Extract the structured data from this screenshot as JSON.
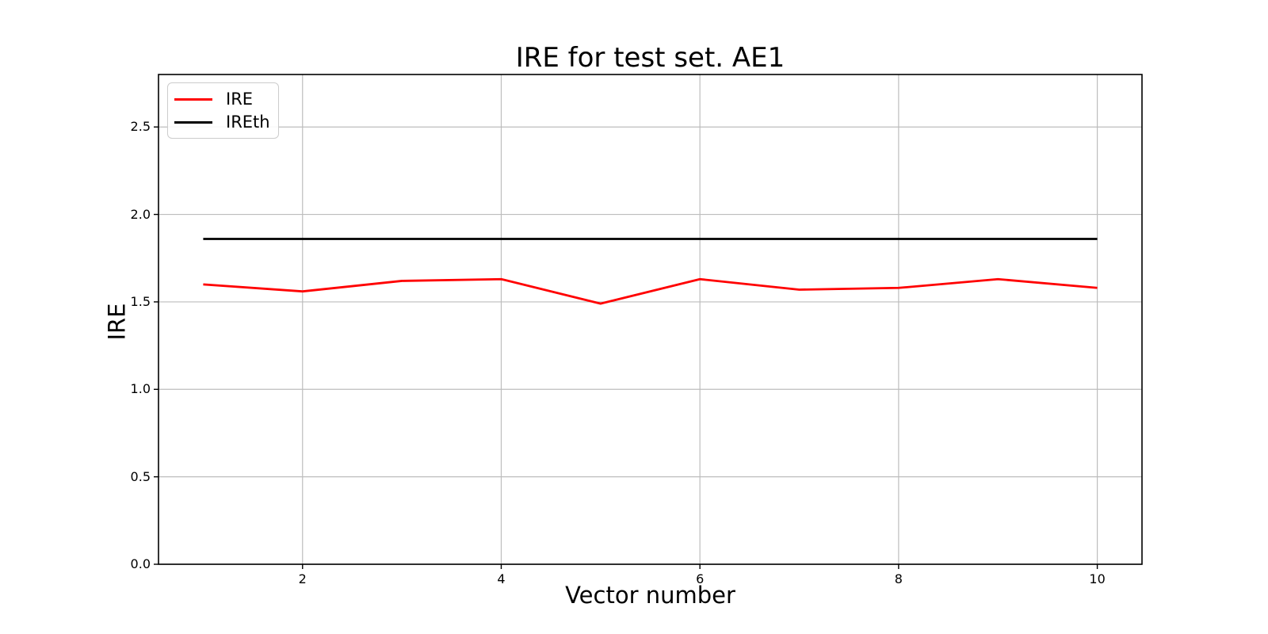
{
  "chart_data": {
    "type": "line",
    "title": "IRE for test set. AE1",
    "xlabel": "Vector number",
    "ylabel": "IRE",
    "x": [
      1,
      2,
      3,
      4,
      5,
      6,
      7,
      8,
      9,
      10
    ],
    "series": [
      {
        "name": "IRE",
        "color": "#ff0000",
        "values": [
          1.6,
          1.56,
          1.62,
          1.63,
          1.49,
          1.63,
          1.57,
          1.58,
          1.63,
          1.58
        ]
      },
      {
        "name": "IREth",
        "color": "#000000",
        "values": [
          1.86,
          1.86,
          1.86,
          1.86,
          1.86,
          1.86,
          1.86,
          1.86,
          1.86,
          1.86
        ]
      }
    ],
    "xlim": [
      0.55,
      10.45
    ],
    "ylim": [
      0,
      2.8
    ],
    "xticks": [
      2,
      4,
      6,
      8,
      10
    ],
    "xticklabels": [
      "2",
      "4",
      "6",
      "8",
      "10"
    ],
    "yticks": [
      0,
      0.5,
      1,
      1.5,
      2,
      2.5
    ],
    "yticklabels": [
      "0.0",
      "0.5",
      "1.0",
      "1.5",
      "2.0",
      "2.5"
    ],
    "grid": true,
    "legend_position": "upper left",
    "colors": {
      "grid": "#bdbdbd",
      "spine": "#000000",
      "background": "#ffffff"
    }
  }
}
